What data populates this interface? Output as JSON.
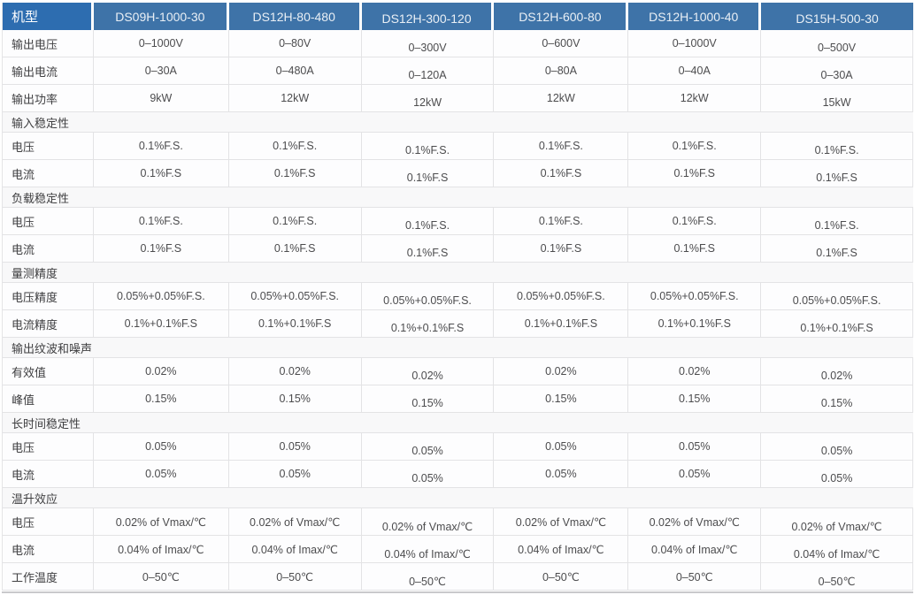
{
  "colors": {
    "header_first_bg": "#2d6db0",
    "header_bg": "#3e73a8",
    "header_text": "#e9eff5",
    "grid_line": "#e3e3e5",
    "section_bg": "#f8f8f9",
    "value_text": "#4c4c4e"
  },
  "table": {
    "columns": [
      "机型",
      "DS09H-1000-30",
      "DS12H-80-480",
      "DS12H-300-120",
      "DS12H-600-80",
      "DS12H-1000-40",
      "DS15H-500-30"
    ],
    "rows": [
      {
        "type": "data",
        "label": "输出电压",
        "values": [
          "0–1000V",
          "0–80V",
          "0–300V",
          "0–600V",
          "0–1000V",
          "0–500V"
        ]
      },
      {
        "type": "data",
        "label": "输出电流",
        "values": [
          "0–30A",
          "0–480A",
          "0–120A",
          "0–80A",
          "0–40A",
          "0–30A"
        ]
      },
      {
        "type": "data",
        "label": "输出功率",
        "values": [
          "9kW",
          "12kW",
          "12kW",
          "12kW",
          "12kW",
          "15kW"
        ]
      },
      {
        "type": "section",
        "label": "输入稳定性"
      },
      {
        "type": "data",
        "label": "电压",
        "values": [
          "0.1%F.S.",
          "0.1%F.S.",
          "0.1%F.S.",
          "0.1%F.S.",
          "0.1%F.S.",
          "0.1%F.S."
        ]
      },
      {
        "type": "data",
        "label": "电流",
        "values": [
          "0.1%F.S",
          "0.1%F.S",
          "0.1%F.S",
          "0.1%F.S",
          "0.1%F.S",
          "0.1%F.S"
        ]
      },
      {
        "type": "section",
        "label": "负载稳定性"
      },
      {
        "type": "data",
        "label": "电压",
        "values": [
          "0.1%F.S.",
          "0.1%F.S.",
          "0.1%F.S.",
          "0.1%F.S.",
          "0.1%F.S.",
          "0.1%F.S."
        ]
      },
      {
        "type": "data",
        "label": "电流",
        "values": [
          "0.1%F.S",
          "0.1%F.S",
          "0.1%F.S",
          "0.1%F.S",
          "0.1%F.S",
          "0.1%F.S"
        ]
      },
      {
        "type": "section",
        "label": "量测精度"
      },
      {
        "type": "data",
        "label": "电压精度",
        "values": [
          "0.05%+0.05%F.S.",
          "0.05%+0.05%F.S.",
          "0.05%+0.05%F.S.",
          "0.05%+0.05%F.S.",
          "0.05%+0.05%F.S.",
          "0.05%+0.05%F.S."
        ]
      },
      {
        "type": "data",
        "label": "电流精度",
        "values": [
          "0.1%+0.1%F.S",
          "0.1%+0.1%F.S",
          "0.1%+0.1%F.S",
          "0.1%+0.1%F.S",
          "0.1%+0.1%F.S",
          "0.1%+0.1%F.S"
        ]
      },
      {
        "type": "section",
        "label": "输出纹波和噪声"
      },
      {
        "type": "data",
        "label": "有效值",
        "values": [
          "0.02%",
          "0.02%",
          "0.02%",
          "0.02%",
          "0.02%",
          "0.02%"
        ]
      },
      {
        "type": "data",
        "label": "峰值",
        "values": [
          "0.15%",
          "0.15%",
          "0.15%",
          "0.15%",
          "0.15%",
          "0.15%"
        ]
      },
      {
        "type": "section",
        "label": "长时间稳定性"
      },
      {
        "type": "data",
        "label": "电压",
        "values": [
          "0.05%",
          "0.05%",
          "0.05%",
          "0.05%",
          "0.05%",
          "0.05%"
        ]
      },
      {
        "type": "data",
        "label": "电流",
        "values": [
          "0.05%",
          "0.05%",
          "0.05%",
          "0.05%",
          "0.05%",
          "0.05%"
        ]
      },
      {
        "type": "section",
        "label": "温升效应"
      },
      {
        "type": "data",
        "label": "电压",
        "values": [
          "0.02% of Vmax/℃",
          "0.02% of Vmax/℃",
          "0.02% of Vmax/℃",
          "0.02% of Vmax/℃",
          "0.02% of Vmax/℃",
          "0.02% of Vmax/℃"
        ]
      },
      {
        "type": "data",
        "label": "电流",
        "values": [
          "0.04% of Imax/℃",
          "0.04% of Imax/℃",
          "0.04% of Imax/℃",
          "0.04% of Imax/℃",
          "0.04% of Imax/℃",
          "0.04% of Imax/℃"
        ]
      },
      {
        "type": "data",
        "label": "工作温度",
        "values": [
          "0–50℃",
          "0–50℃",
          "0–50℃",
          "0–50℃",
          "0–50℃",
          "0–50℃"
        ]
      }
    ]
  }
}
